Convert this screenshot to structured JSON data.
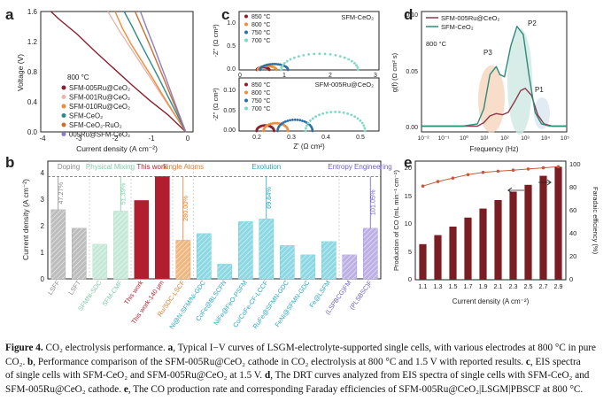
{
  "panels": {
    "a": {
      "letter": "a",
      "legend_title": "800 °C",
      "xlabel": "Current density (A cm⁻²)",
      "ylabel": "Voltage (V)",
      "xticks": [
        "-4",
        "-3",
        "-2",
        "-1",
        "0"
      ],
      "yticks": [
        "0.0",
        "0.4",
        "0.8",
        "1.2",
        "1.6"
      ]
    },
    "b": {
      "letter": "b",
      "ylabel": "Current density (A cm⁻²)",
      "yticks": [
        "0",
        "1",
        "2",
        "3",
        "4"
      ],
      "groups": [
        "Doping",
        "Physical Mixing",
        "This work",
        "Single Atoms",
        "Exolution",
        "Entropy Engineering"
      ]
    },
    "c": {
      "letter": "c",
      "top_title": "SFM-CeO₂",
      "bottom_title": "SFM-005Ru@CeO₂",
      "ylabel": "-Z'' (Ω cm²)",
      "xlabel": "Z' (Ω cm²)",
      "top_xticks": [
        "0",
        "1",
        "2",
        "3"
      ],
      "top_yticks": [
        "0.0",
        "0.5",
        "1.0"
      ],
      "bottom_xticks": [
        "0.2",
        "0.3",
        "0.4",
        "0.5"
      ],
      "bottom_yticks": [
        "0.00",
        "0.05",
        "0.10"
      ],
      "legend": [
        "850 °C",
        "800 °C",
        "750 °C",
        "700 °C"
      ]
    },
    "d": {
      "letter": "d",
      "legend": [
        "SFM-005Ru@CeO₂",
        "SFM-CeO₂"
      ],
      "temp": "800 °C",
      "peaks": [
        "P1",
        "P2",
        "P3"
      ],
      "ylabel": "g(f) (Ω cm² s)",
      "xlabel": "Frequency (Hz)",
      "yticks": [
        "0.00",
        "0.05",
        "0.10"
      ],
      "xticks": [
        "10⁻²",
        "10⁻¹",
        "10⁰",
        "10¹",
        "10²",
        "10³",
        "10⁴",
        "10⁵"
      ]
    },
    "e": {
      "letter": "e",
      "ylabel_left": "Production of CO (mL min⁻¹ cm⁻²)",
      "ylabel_right": "Faradaic efficiency (%)",
      "xlabel": "Current density (A cm⁻²)",
      "yticks_left": [
        "0",
        "5",
        "10",
        "15",
        "20"
      ],
      "yticks_right": [
        "0",
        "20",
        "40",
        "60",
        "80",
        "100"
      ]
    }
  },
  "chart_data": [
    {
      "id": "a",
      "type": "line",
      "xlabel": "Current density (A cm⁻²)",
      "ylabel": "Voltage (V)",
      "xlim": [
        -4,
        0.2
      ],
      "ylim": [
        0,
        1.6
      ],
      "series": [
        {
          "name": "SFM-005Ru@CeO₂",
          "color": "#8a1f2d",
          "x": [
            0,
            -0.5,
            -1.0,
            -1.5,
            -2.0,
            -2.5,
            -3.0,
            -3.5,
            -3.72
          ],
          "y": [
            0.0,
            0.23,
            0.42,
            0.63,
            0.85,
            1.07,
            1.3,
            1.5,
            1.6
          ]
        },
        {
          "name": "SFM-001Ru@CeO₂",
          "color": "#e6b8b0",
          "x": [
            0,
            -0.3,
            -0.6,
            -0.9,
            -1.2,
            -1.5,
            -1.8,
            -2.0,
            -2.15
          ],
          "y": [
            0.0,
            0.22,
            0.44,
            0.66,
            0.88,
            1.1,
            1.32,
            1.48,
            1.6
          ]
        },
        {
          "name": "SFM-010Ru@CeO₂",
          "color": "#f08c3c",
          "x": [
            0,
            -0.3,
            -0.6,
            -0.9,
            -1.2,
            -1.5,
            -1.75,
            -1.95
          ],
          "y": [
            0.0,
            0.23,
            0.46,
            0.7,
            0.93,
            1.16,
            1.38,
            1.6
          ]
        },
        {
          "name": "SFM-CeO₂",
          "color": "#2d8a8a",
          "x": [
            0,
            -0.25,
            -0.5,
            -0.75,
            -1.0,
            -1.25,
            -1.5,
            -1.7
          ],
          "y": [
            0.0,
            0.24,
            0.48,
            0.72,
            0.95,
            1.18,
            1.42,
            1.6
          ]
        },
        {
          "name": "SFM-CeO₂-RuO₂",
          "color": "#c8702c",
          "x": [
            0,
            -0.2,
            -0.4,
            -0.6,
            -0.8,
            -1.0,
            -1.2,
            -1.4
          ],
          "y": [
            0.0,
            0.23,
            0.46,
            0.7,
            0.93,
            1.16,
            1.38,
            1.6
          ]
        },
        {
          "name": "005Ru@SFM-CeO₂",
          "color": "#8e7cc3",
          "x": [
            0,
            -0.18,
            -0.36,
            -0.54,
            -0.72,
            -0.9,
            -1.08,
            -1.25
          ],
          "y": [
            0.0,
            0.23,
            0.46,
            0.7,
            0.93,
            1.16,
            1.38,
            1.6
          ]
        }
      ]
    },
    {
      "id": "b",
      "type": "bar",
      "ylabel": "Current density (A cm⁻²)",
      "ylim": [
        0,
        4
      ],
      "categories": [
        "LSFF",
        "LSFT",
        "SFMNi-SDC",
        "SFM-CMF",
        "This work",
        "This work-140 μm",
        "Ru/SDC-LSCF",
        "Ni@N-SFM/Ni-GDC",
        "CoFe@BLSCFN",
        "NiFe@FeO-PSFM",
        "Co/CoFe-CF-LCCF",
        "RuFe@SFMN-GDC",
        "FeNi@SFMN-GDC",
        "Fe@LSFM",
        "(LSPBCG)FM",
        "(PLSBSC)F"
      ],
      "values": [
        2.6,
        1.9,
        1.3,
        2.55,
        2.95,
        3.85,
        1.45,
        1.7,
        0.55,
        2.15,
        2.25,
        1.25,
        0.9,
        1.4,
        0.9,
        1.9
      ],
      "groups": [
        "Doping",
        "Doping",
        "Physical Mixing",
        "Physical Mixing",
        "This work",
        "This work",
        "Single Atoms",
        "Exolution",
        "Exolution",
        "Exolution",
        "Exolution",
        "Exolution",
        "Exolution",
        "Exolution",
        "Entropy Engineering",
        "Entropy Engineering"
      ],
      "annotations": [
        {
          "category": "LSFF",
          "text": "47.27%"
        },
        {
          "category": "SFM-CMF",
          "text": "51.39%"
        },
        {
          "category": "Ru/SDC-LSCF",
          "text": "280.00%"
        },
        {
          "category": "Co/CoFe-CF-LCCF",
          "text": "69.64%"
        },
        {
          "category": "(PLSBSC)F",
          "text": "101.05%"
        }
      ],
      "reference_line": 3.85
    },
    {
      "id": "c-top",
      "type": "scatter",
      "title": "SFM-CeO₂",
      "xlabel": "Z' (Ω cm²)",
      "ylabel": "-Z'' (Ω cm²)",
      "xlim": [
        0,
        3
      ],
      "ylim": [
        0,
        1.25
      ],
      "series": [
        {
          "name": "850 °C",
          "color": "#8a1f2d",
          "arc": [
            0.38,
            0.65
          ]
        },
        {
          "name": "800 °C",
          "color": "#f08c3c",
          "arc": [
            0.4,
            0.8
          ]
        },
        {
          "name": "750 °C",
          "color": "#2d6fa8",
          "arc": [
            0.45,
            1.05
          ]
        },
        {
          "name": "700 °C",
          "color": "#7fd8c4",
          "arc": [
            0.9,
            2.55
          ]
        }
      ]
    },
    {
      "id": "c-bottom",
      "type": "scatter",
      "title": "SFM-005Ru@CeO₂",
      "xlabel": "Z' (Ω cm²)",
      "ylabel": "-Z'' (Ω cm²)",
      "xlim": [
        0.15,
        0.55
      ],
      "ylim": [
        0,
        0.13
      ],
      "series": [
        {
          "name": "850 °C",
          "color": "#8a1f2d",
          "arc": [
            0.2,
            0.25
          ]
        },
        {
          "name": "800 °C",
          "color": "#f08c3c",
          "arc": [
            0.22,
            0.29
          ]
        },
        {
          "name": "750 °C",
          "color": "#2d6fa8",
          "arc": [
            0.26,
            0.36
          ]
        },
        {
          "name": "700 °C",
          "color": "#7fd8c4",
          "arc": [
            0.34,
            0.51
          ]
        }
      ]
    },
    {
      "id": "d",
      "type": "line",
      "xlabel": "Frequency (Hz)",
      "ylabel": "g(f) (Ω cm² s)",
      "xscale": "log",
      "xlim": [
        0.01,
        100000
      ],
      "ylim": [
        -0.005,
        0.1
      ],
      "series": [
        {
          "name": "SFM-005Ru@CeO₂",
          "color": "#8a3a4a",
          "x": [
            0.01,
            1,
            5,
            10,
            20,
            40,
            80,
            150,
            300,
            600,
            1000,
            2000,
            4000,
            8000,
            20000,
            100000
          ],
          "y": [
            0,
            0,
            0,
            0.003,
            0.009,
            0.011,
            0.01,
            0.012,
            0.021,
            0.031,
            0.033,
            0.027,
            0.01,
            0.002,
            0,
            0
          ]
        },
        {
          "name": "SFM-CeO₂",
          "color": "#2d8a7a",
          "x": [
            0.01,
            1,
            5,
            10,
            20,
            40,
            60,
            100,
            200,
            400,
            800,
            1500,
            3000,
            6000,
            15000,
            100000
          ],
          "y": [
            0,
            0,
            0.002,
            0.015,
            0.045,
            0.052,
            0.045,
            0.043,
            0.07,
            0.087,
            0.08,
            0.045,
            0.012,
            0.002,
            0,
            0
          ]
        }
      ]
    },
    {
      "id": "e",
      "type": "bar",
      "xlabel": "Current density (A cm⁻²)",
      "ylabel": "Production of CO (mL min⁻¹ cm⁻²)",
      "y2label": "Faradaic efficiency (%)",
      "ylim": [
        0,
        21
      ],
      "y2lim": [
        0,
        100
      ],
      "categories": [
        "1.1",
        "1.3",
        "1.5",
        "1.7",
        "1.9",
        "2.1",
        "2.3",
        "2.5",
        "2.7",
        "2.9"
      ],
      "values": [
        6.3,
        7.9,
        9.4,
        11.0,
        12.6,
        14.1,
        15.6,
        16.8,
        18.4,
        20.0
      ],
      "faradaic_efficiency": [
        82,
        86,
        89,
        92,
        94,
        95,
        96,
        97,
        98,
        99
      ]
    }
  ],
  "caption": {
    "label": "Figure 4.",
    "lines": [
      [
        {
          "t": "Figure 4. ",
          "b": true
        },
        {
          "t": "CO₂ electrolysis performance. "
        },
        {
          "t": "a",
          "b": true
        },
        {
          "t": ", Typical I−V curves of LSGM-electrolyte-supported single cells, with various electrodes at 800 °C in pure"
        }
      ],
      [
        {
          "t": "CO₂. "
        },
        {
          "t": "b",
          "b": true
        },
        {
          "t": ", Performance comparison of the SFM-005Ru@CeO₂ cathode in CO₂ electrolysis at 800 °C and 1.5 V with reported results. "
        },
        {
          "t": "c",
          "b": true
        },
        {
          "t": ", EIS spectra"
        }
      ],
      [
        {
          "t": "of single cells with SFM-CeO₂ and SFM-005Ru@CeO₂ at 1.5 V. "
        },
        {
          "t": "d",
          "b": true
        },
        {
          "t": ", The DRT curves analyzed from EIS spectra of single cells with SFM-CeO₂ and"
        }
      ],
      [
        {
          "t": "SFM-005Ru@CeO₂ cathode. "
        },
        {
          "t": "e",
          "b": true
        },
        {
          "t": ", The CO production rate and corresponding Faraday efficiencies of SFM-005Ru@CeO₂|LSGM|PBSCF at 800 °C."
        }
      ]
    ]
  }
}
